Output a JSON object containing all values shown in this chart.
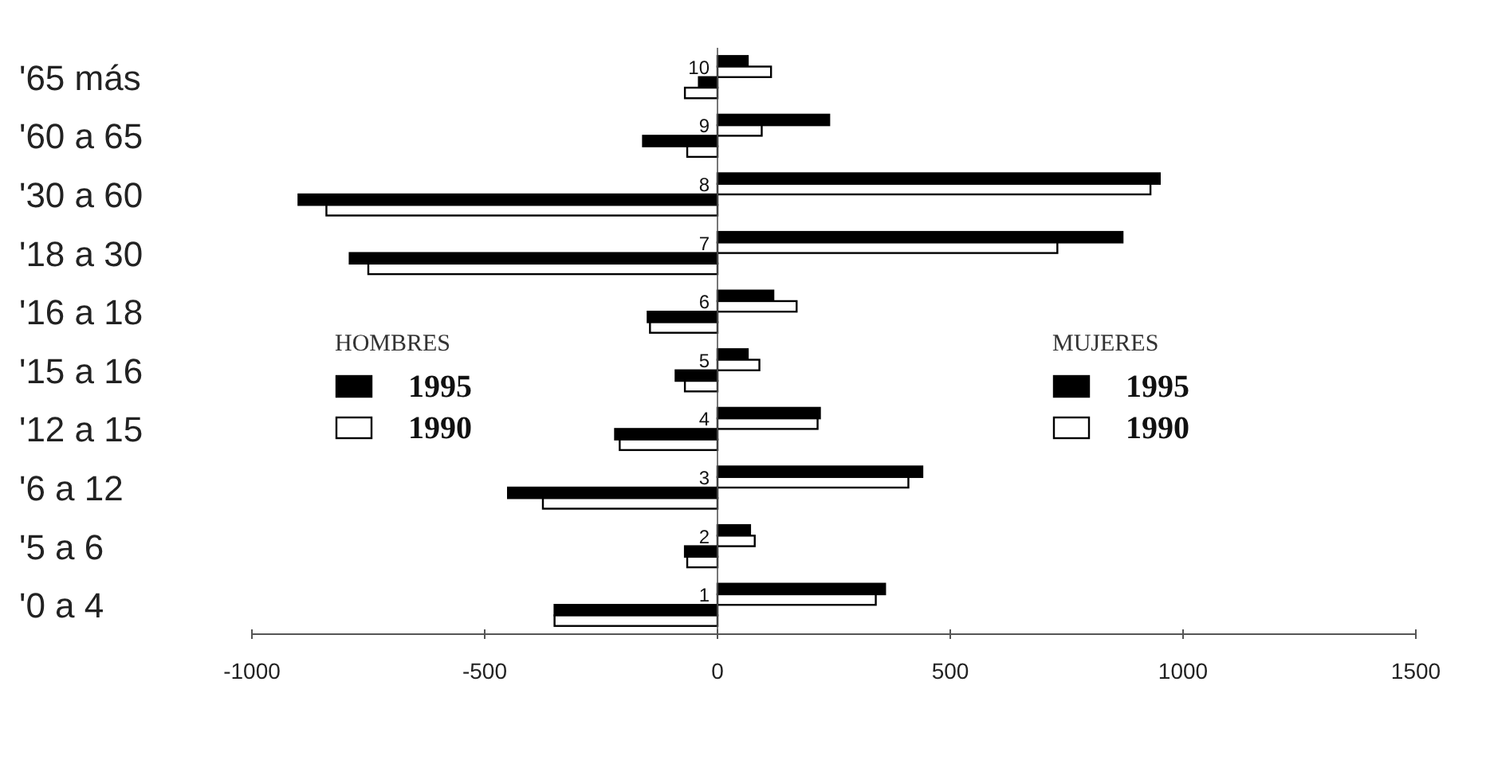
{
  "chart_data": {
    "type": "bar",
    "orientation": "horizontal",
    "categories": [
      "'65 más",
      "'60 a 65",
      "'30 a 60",
      "'18 a 30",
      "'16 a 18",
      "'15 a 16",
      "'12 a 15",
      "'6 a 12",
      "'5 a 6",
      "'0 a 4"
    ],
    "series": [
      {
        "name": "1995",
        "color": "#000000",
        "values": [
          65,
          240,
          950,
          870,
          120,
          65,
          220,
          440,
          70,
          360
        ]
      },
      {
        "name": "1990",
        "color": "#ffffff",
        "values": [
          115,
          95,
          930,
          730,
          170,
          90,
          215,
          410,
          80,
          340
        ]
      },
      {
        "name": "1995",
        "color": "#000000",
        "values": [
          -40,
          -160,
          -900,
          -790,
          -150,
          -90,
          -220,
          -450,
          -70,
          -350
        ]
      },
      {
        "name": "1990",
        "color": "#ffffff",
        "values": [
          -70,
          -65,
          -840,
          -750,
          -145,
          -70,
          -210,
          -375,
          -65,
          -350
        ]
      }
    ],
    "xlim": [
      -1000,
      1500
    ],
    "xticks": [
      -1000,
      -500,
      0,
      500,
      1000,
      1500
    ],
    "legend": "left",
    "annotations": [
      "MUJERES",
      "HOMBRES",
      {
        "text": "10",
        "y": "'65 más"
      },
      {
        "text": "9",
        "y": "'60 a 65"
      },
      {
        "text": "8",
        "y": "'30 a 60"
      },
      {
        "text": "7",
        "y": "'18 a 30"
      },
      {
        "text": "6",
        "y": "'16 a 18"
      },
      {
        "text": "5",
        "y": "'15 a 16"
      },
      {
        "text": "4",
        "y": "'12 a 15"
      },
      {
        "text": "3",
        "y": "'6 a 12"
      },
      {
        "text": "2",
        "y": "'5 a 6"
      },
      {
        "text": "1",
        "y": "'0 a 4"
      }
    ]
  }
}
